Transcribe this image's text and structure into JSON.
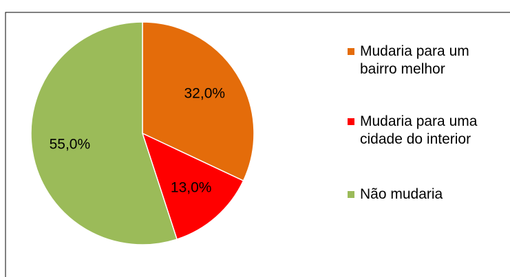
{
  "chart_data": {
    "type": "pie",
    "categories": [
      "Mudaria para um bairro melhor",
      "Mudaria para uma cidade do interior",
      "Não mudaria"
    ],
    "values": [
      32,
      13,
      55
    ],
    "value_labels": [
      "32,0%",
      "13,0%",
      "55,0%"
    ],
    "colors": [
      "#e46c0a",
      "#ff0000",
      "#9bbb59"
    ],
    "legend": "right"
  }
}
